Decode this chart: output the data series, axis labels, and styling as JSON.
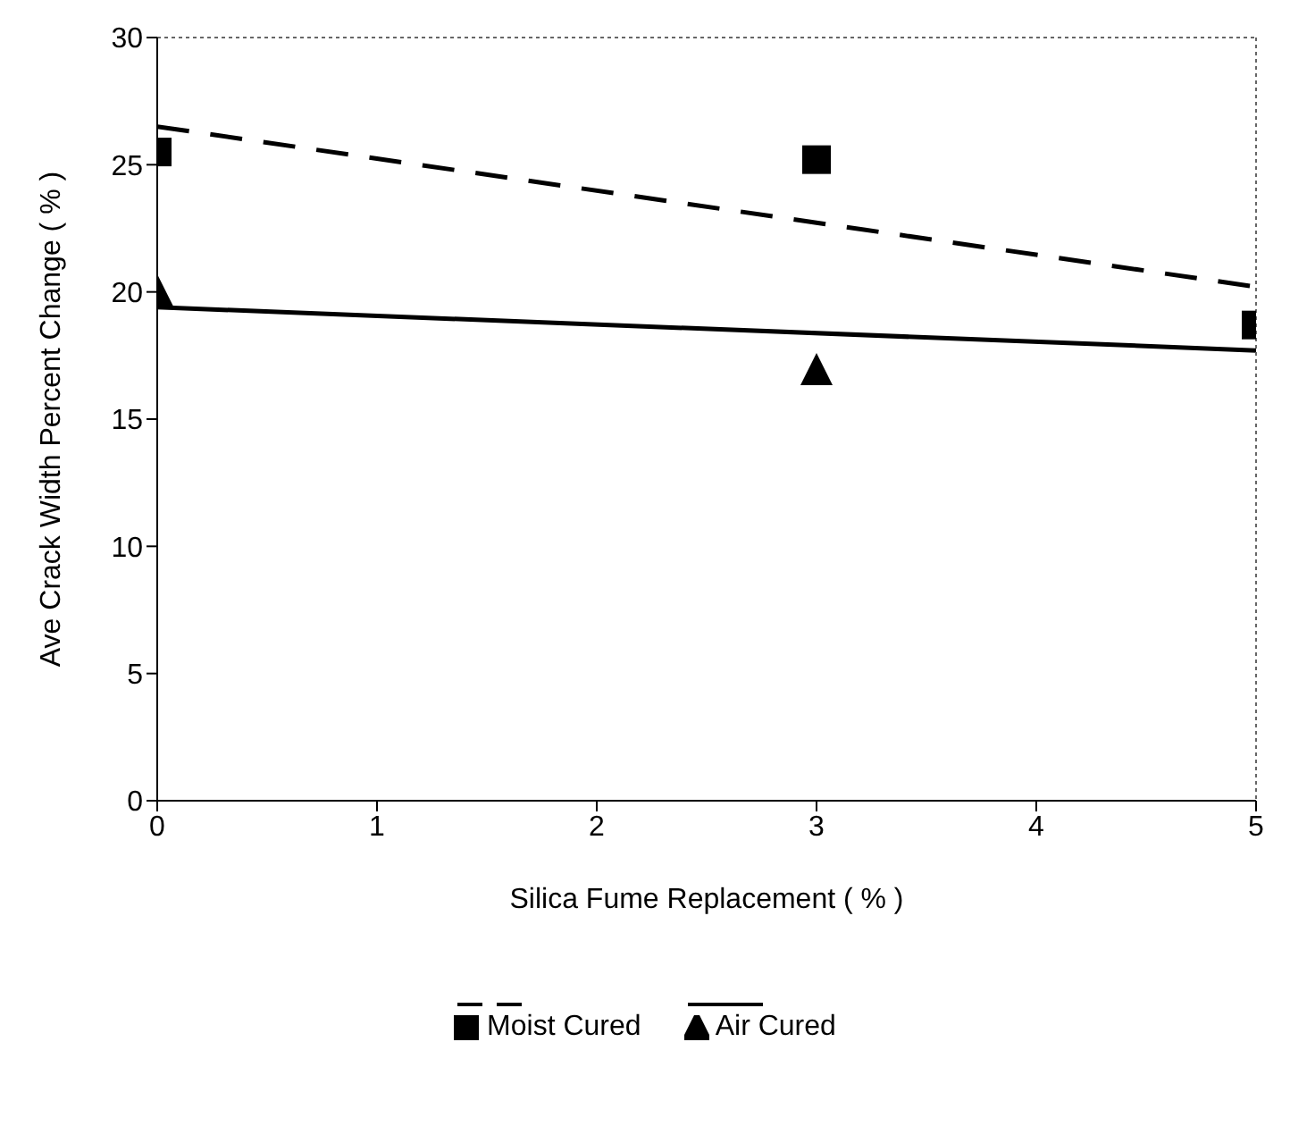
{
  "chart_data": {
    "type": "scatter",
    "xlabel": "Silica Fume Replacement ( % )",
    "ylabel": "Ave Crack Width Percent Change ( % )",
    "xlim": [
      0,
      5
    ],
    "xticks": [
      0,
      1,
      2,
      3,
      4,
      5
    ],
    "ylim": [
      0,
      30
    ],
    "yticks": [
      0,
      5,
      10,
      15,
      20,
      25,
      30
    ],
    "grid": false,
    "legend": "bottom",
    "series": [
      {
        "name": "Moist Cured",
        "color": "#000000",
        "marker": "square",
        "x": [
          0,
          3,
          5
        ],
        "values": [
          25.5,
          25.2,
          18.7
        ]
      },
      {
        "name": "Air Cured",
        "color": "#000000",
        "marker": "triangle",
        "x": [
          0,
          3
        ],
        "values": [
          20,
          16.9
        ]
      },
      {
        "type": "line",
        "color": "#000000",
        "line_style": "dashed",
        "marker": "none",
        "x": [
          0,
          5
        ],
        "values": [
          26.5,
          20.2
        ]
      },
      {
        "type": "line",
        "color": "#000000",
        "line_style": "solid",
        "marker": "none",
        "x": [
          0,
          5
        ],
        "values": [
          19.4,
          17.7
        ]
      }
    ]
  }
}
